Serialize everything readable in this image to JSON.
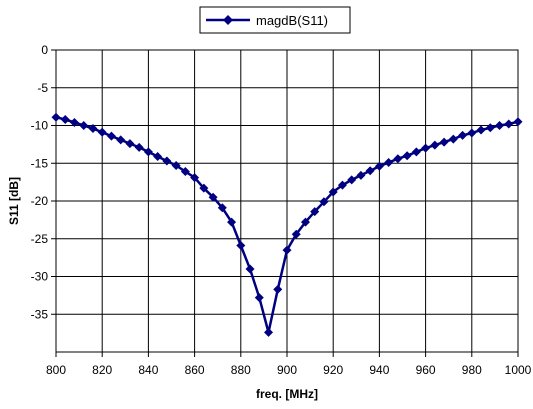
{
  "chart_data": {
    "type": "line",
    "title": "",
    "xlabel": "freq. [MHz]",
    "ylabel": "S11 [dB]",
    "xlim": [
      800,
      1000
    ],
    "ylim": [
      -40,
      0
    ],
    "x_ticks": [
      800,
      820,
      840,
      860,
      880,
      900,
      920,
      940,
      960,
      980,
      1000
    ],
    "y_ticks": [
      0,
      -5,
      -10,
      -15,
      -20,
      -25,
      -30,
      -35
    ],
    "grid": true,
    "legend_position": "top-center",
    "series": [
      {
        "name": "magdB(S11)",
        "color": "#000080",
        "marker": "diamond",
        "x": [
          800,
          804,
          808,
          812,
          816,
          820,
          824,
          828,
          832,
          836,
          840,
          844,
          848,
          852,
          856,
          860,
          864,
          868,
          872,
          876,
          880,
          884,
          888,
          892,
          896,
          900,
          904,
          908,
          912,
          916,
          920,
          924,
          928,
          932,
          936,
          940,
          944,
          948,
          952,
          956,
          960,
          964,
          968,
          972,
          976,
          980,
          984,
          988,
          992,
          996,
          1000
        ],
        "y": [
          -8.9,
          -9.2,
          -9.6,
          -10.0,
          -10.4,
          -10.9,
          -11.4,
          -11.9,
          -12.4,
          -12.9,
          -13.5,
          -14.1,
          -14.7,
          -15.3,
          -16.1,
          -16.9,
          -18.3,
          -19.5,
          -20.9,
          -22.8,
          -25.9,
          -29.0,
          -32.8,
          -37.4,
          -31.7,
          -26.5,
          -24.4,
          -22.8,
          -21.4,
          -20.1,
          -18.8,
          -17.9,
          -17.2,
          -16.6,
          -16.0,
          -15.4,
          -14.9,
          -14.4,
          -14.0,
          -13.5,
          -13.0,
          -12.6,
          -12.2,
          -11.8,
          -11.3,
          -11.0,
          -10.6,
          -10.3,
          -10.0,
          -9.8,
          -9.5
        ]
      }
    ]
  }
}
